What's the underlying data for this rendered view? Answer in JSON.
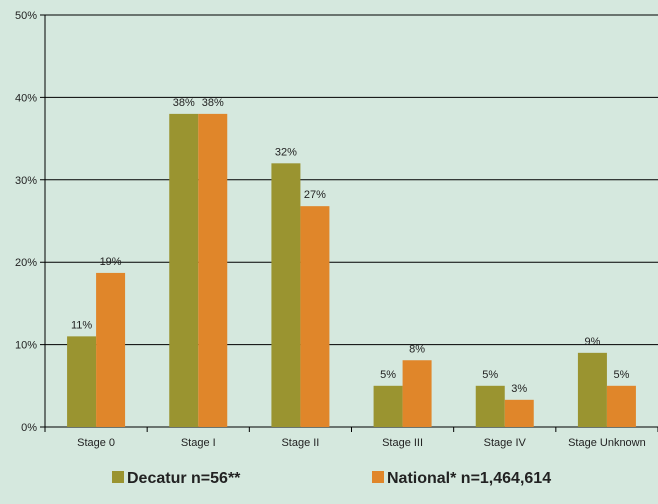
{
  "chart_data": {
    "type": "bar",
    "categories": [
      "Stage 0",
      "Stage I",
      "Stage II",
      "Stage III",
      "Stage IV",
      "Stage Unknown"
    ],
    "series": [
      {
        "name": "Decatur n=56**",
        "values": [
          11,
          38,
          32,
          5,
          5,
          9
        ],
        "labels": [
          "11%",
          "38%",
          "32%",
          "5%",
          "5%",
          "9%"
        ],
        "color": "#9a9430"
      },
      {
        "name": "National* n=1,464,614",
        "values": [
          18.7,
          38,
          26.8,
          8.1,
          3.3,
          5
        ],
        "labels": [
          "19%",
          "38%",
          "27%",
          "8%",
          "3%",
          "5%"
        ],
        "color": "#e0862a"
      }
    ],
    "yticks": [
      "0%",
      "10%",
      "20%",
      "30%",
      "40%",
      "50%"
    ],
    "ylim": [
      0,
      50
    ],
    "grid": true,
    "legend_position": "bottom"
  }
}
